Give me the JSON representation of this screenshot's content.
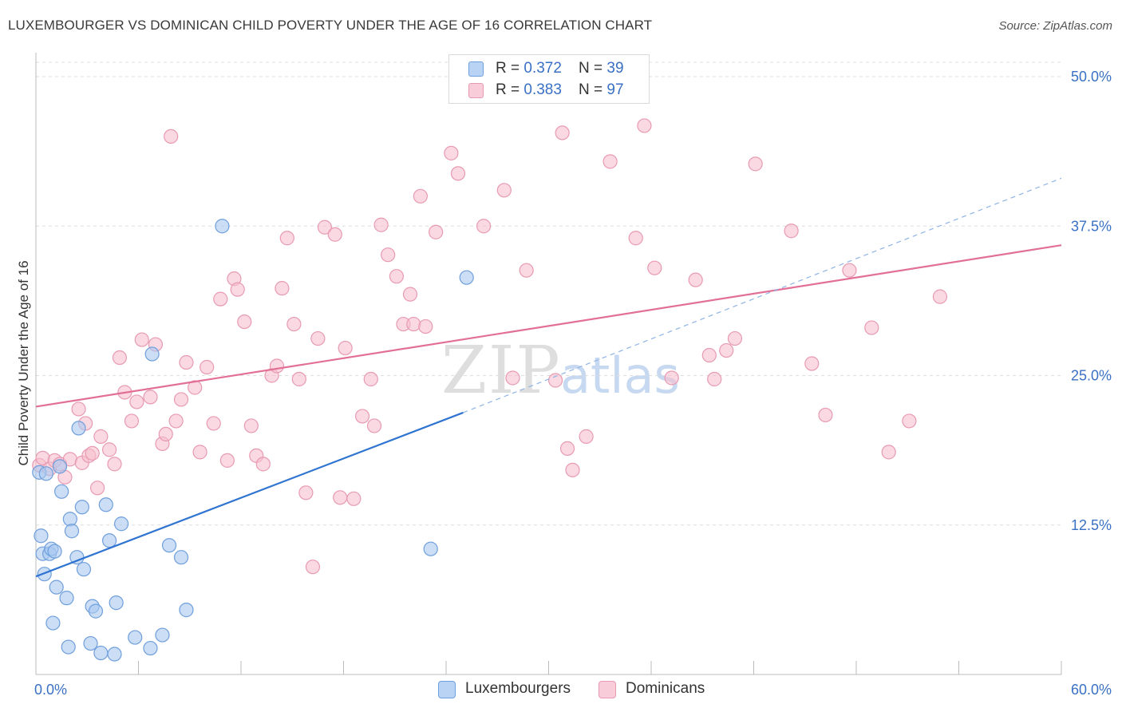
{
  "title": "LUXEMBOURGER VS DOMINICAN CHILD POVERTY UNDER THE AGE OF 16 CORRELATION CHART",
  "source": "Source: ZipAtlas.com",
  "watermark": {
    "zip": "ZIP",
    "atlas": "atlas"
  },
  "legend": {
    "rows": [
      {
        "r_label": "R = ",
        "r_value": "0.372",
        "n_label": "N = ",
        "n_value": "39"
      },
      {
        "r_label": "R = ",
        "r_value": "0.383",
        "n_label": "N = ",
        "n_value": "97"
      }
    ]
  },
  "bottom_legend": {
    "series1": "Luxembourgers",
    "series2": "Dominicans"
  },
  "colors": {
    "lux_fill": "#a9c8f0",
    "lux_stroke": "#6f9fdc",
    "lux_line": "#2f74d0",
    "dom_fill": "#f6bfcf",
    "dom_stroke": "#e89ab2",
    "dom_line": "#e26f96",
    "axis_text": "#3a70c4",
    "grid": "#dddddd"
  },
  "chart_data": {
    "type": "scatter",
    "title": "LUXEMBOURGER VS DOMINICAN CHILD POVERTY UNDER THE AGE OF 16 CORRELATION CHART",
    "xlabel": "",
    "ylabel": "Child Poverty Under the Age of 16",
    "xlim": [
      0,
      60
    ],
    "ylim": [
      0,
      50
    ],
    "x_tick_labels": [
      "0.0%",
      "60.0%"
    ],
    "y_tick_labels": [
      "12.5%",
      "25.0%",
      "37.5%",
      "50.0%"
    ],
    "y_ticks": [
      12.5,
      25.0,
      37.5,
      50.0
    ],
    "grid": "horizontal dashed",
    "legend_position": "top-center",
    "series": [
      {
        "name": "Luxembourgers",
        "R": 0.372,
        "N": 39,
        "trend": {
          "x": [
            0,
            25
          ],
          "y": [
            8.2,
            21.9
          ]
        },
        "trend_extension": {
          "x": [
            25,
            60
          ],
          "y": [
            21.9,
            41.5
          ]
        },
        "points": [
          [
            0.2,
            16.9
          ],
          [
            0.3,
            11.6
          ],
          [
            0.4,
            10.1
          ],
          [
            0.5,
            8.4
          ],
          [
            0.8,
            10.1
          ],
          [
            0.9,
            10.5
          ],
          [
            1.0,
            4.3
          ],
          [
            1.2,
            7.3
          ],
          [
            1.4,
            17.4
          ],
          [
            1.5,
            15.3
          ],
          [
            1.8,
            6.4
          ],
          [
            1.9,
            2.3
          ],
          [
            2.0,
            13.0
          ],
          [
            2.1,
            12.0
          ],
          [
            2.4,
            9.8
          ],
          [
            2.5,
            20.6
          ],
          [
            2.7,
            14.0
          ],
          [
            2.8,
            8.8
          ],
          [
            3.2,
            2.6
          ],
          [
            3.3,
            5.7
          ],
          [
            3.5,
            5.3
          ],
          [
            3.8,
            1.8
          ],
          [
            4.1,
            14.2
          ],
          [
            4.3,
            11.2
          ],
          [
            4.6,
            1.7
          ],
          [
            4.7,
            6.0
          ],
          [
            5.0,
            12.6
          ],
          [
            5.8,
            3.1
          ],
          [
            6.7,
            2.2
          ],
          [
            6.8,
            26.8
          ],
          [
            7.4,
            3.3
          ],
          [
            7.8,
            10.8
          ],
          [
            8.5,
            9.8
          ],
          [
            8.8,
            5.4
          ],
          [
            10.9,
            37.5
          ],
          [
            23.1,
            10.5
          ],
          [
            25.2,
            33.2
          ],
          [
            0.6,
            16.8
          ],
          [
            1.1,
            10.3
          ]
        ]
      },
      {
        "name": "Dominicans",
        "R": 0.383,
        "N": 97,
        "trend": {
          "x": [
            0,
            60
          ],
          "y": [
            22.4,
            35.9
          ]
        },
        "points": [
          [
            0.2,
            17.5
          ],
          [
            0.4,
            18.1
          ],
          [
            0.8,
            17.2
          ],
          [
            1.1,
            17.9
          ],
          [
            1.4,
            17.6
          ],
          [
            1.7,
            16.5
          ],
          [
            2.0,
            18.0
          ],
          [
            2.5,
            22.2
          ],
          [
            2.7,
            17.7
          ],
          [
            2.9,
            21.0
          ],
          [
            3.1,
            18.3
          ],
          [
            3.3,
            18.5
          ],
          [
            3.6,
            15.6
          ],
          [
            3.8,
            19.9
          ],
          [
            4.3,
            18.8
          ],
          [
            4.6,
            17.6
          ],
          [
            4.9,
            26.5
          ],
          [
            5.2,
            23.6
          ],
          [
            5.6,
            21.2
          ],
          [
            5.9,
            22.8
          ],
          [
            6.2,
            28.0
          ],
          [
            6.7,
            23.2
          ],
          [
            7.0,
            27.6
          ],
          [
            7.4,
            19.3
          ],
          [
            7.6,
            20.1
          ],
          [
            7.9,
            45.0
          ],
          [
            8.2,
            21.2
          ],
          [
            8.5,
            23.0
          ],
          [
            8.8,
            26.1
          ],
          [
            9.3,
            24.0
          ],
          [
            9.6,
            18.6
          ],
          [
            10.0,
            25.7
          ],
          [
            10.4,
            21.0
          ],
          [
            10.8,
            31.4
          ],
          [
            11.2,
            17.9
          ],
          [
            11.6,
            33.1
          ],
          [
            11.8,
            32.2
          ],
          [
            12.2,
            29.5
          ],
          [
            12.6,
            20.8
          ],
          [
            12.9,
            18.3
          ],
          [
            13.3,
            17.6
          ],
          [
            13.8,
            25.0
          ],
          [
            14.1,
            25.8
          ],
          [
            14.4,
            32.3
          ],
          [
            14.7,
            36.5
          ],
          [
            15.1,
            29.3
          ],
          [
            15.4,
            24.7
          ],
          [
            15.8,
            15.2
          ],
          [
            16.2,
            9.0
          ],
          [
            16.5,
            28.1
          ],
          [
            16.9,
            37.4
          ],
          [
            17.5,
            36.8
          ],
          [
            17.8,
            14.8
          ],
          [
            18.1,
            27.3
          ],
          [
            18.6,
            14.7
          ],
          [
            19.1,
            21.6
          ],
          [
            19.6,
            24.7
          ],
          [
            19.8,
            20.8
          ],
          [
            20.2,
            37.6
          ],
          [
            20.6,
            35.1
          ],
          [
            21.1,
            33.3
          ],
          [
            21.5,
            29.3
          ],
          [
            21.9,
            31.8
          ],
          [
            22.1,
            29.3
          ],
          [
            22.5,
            40.0
          ],
          [
            22.8,
            29.1
          ],
          [
            23.4,
            37.0
          ],
          [
            24.3,
            43.6
          ],
          [
            24.7,
            41.9
          ],
          [
            26.2,
            37.5
          ],
          [
            27.4,
            40.5
          ],
          [
            27.9,
            24.8
          ],
          [
            28.7,
            33.8
          ],
          [
            30.4,
            24.6
          ],
          [
            30.8,
            45.3
          ],
          [
            31.1,
            18.9
          ],
          [
            31.4,
            17.1
          ],
          [
            32.2,
            19.9
          ],
          [
            33.6,
            42.9
          ],
          [
            35.1,
            36.5
          ],
          [
            35.6,
            45.9
          ],
          [
            36.2,
            34.0
          ],
          [
            37.2,
            24.8
          ],
          [
            38.6,
            33.0
          ],
          [
            39.4,
            26.7
          ],
          [
            39.7,
            24.7
          ],
          [
            40.4,
            27.1
          ],
          [
            40.9,
            28.1
          ],
          [
            42.1,
            42.7
          ],
          [
            44.2,
            37.1
          ],
          [
            45.4,
            26.0
          ],
          [
            46.2,
            21.7
          ],
          [
            47.6,
            33.8
          ],
          [
            48.9,
            29.0
          ],
          [
            49.9,
            18.6
          ],
          [
            51.1,
            21.2
          ],
          [
            52.9,
            31.6
          ]
        ]
      }
    ]
  }
}
